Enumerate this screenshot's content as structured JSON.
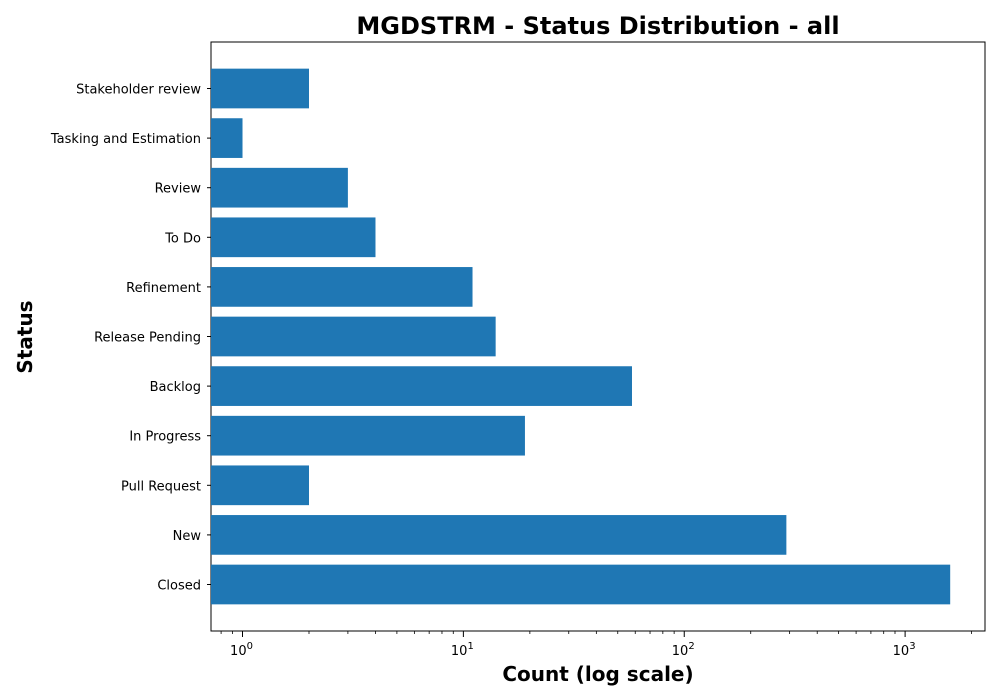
{
  "chart_data": {
    "type": "bar",
    "orientation": "horizontal",
    "title": "MGDSTRM - Status Distribution - all",
    "xlabel": "Count (log scale)",
    "ylabel": "Status",
    "xscale": "log",
    "xlim": [
      0.72,
      2300
    ],
    "grid": false,
    "bar_color": "#1f77b4",
    "categories": [
      "Closed",
      "New",
      "Pull Request",
      "In Progress",
      "Backlog",
      "Release Pending",
      "Refinement",
      "To Do",
      "Review",
      "Tasking and Estimation",
      "Stakeholder review"
    ],
    "values": [
      1600,
      290,
      2,
      19,
      58,
      14,
      11,
      4,
      3,
      1,
      2
    ],
    "x_ticks": [
      {
        "value": 1,
        "base": "10",
        "exp": "0"
      },
      {
        "value": 10,
        "base": "10",
        "exp": "1"
      },
      {
        "value": 100,
        "base": "10",
        "exp": "2"
      },
      {
        "value": 1000,
        "base": "10",
        "exp": "3"
      }
    ]
  }
}
